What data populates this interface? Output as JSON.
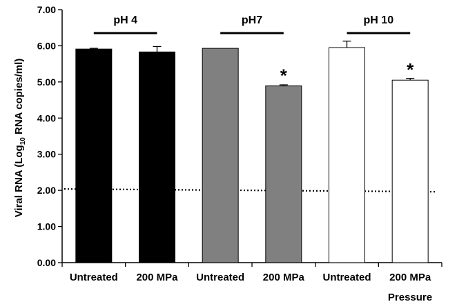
{
  "chart_data": {
    "type": "bar",
    "ylabel_main": "Viral RNA (Log",
    "ylabel_sub": "10",
    "ylabel_rest": " RNA copies/ml)",
    "xlabel": "Pressure",
    "ylim": [
      0,
      7
    ],
    "yticks": [
      "0.00",
      "1.00",
      "2.00",
      "3.00",
      "4.00",
      "5.00",
      "6.00",
      "7.00"
    ],
    "grid": false,
    "categories": [
      "Untreated",
      "200 MPa",
      "Untreated",
      "200 MPa",
      "Untreated",
      "200 MPa"
    ],
    "values": [
      5.91,
      5.83,
      5.93,
      4.89,
      5.95,
      5.05
    ],
    "errors": [
      0.02,
      0.15,
      0.0,
      0.03,
      0.18,
      0.05
    ],
    "groups": [
      {
        "label": "pH 4",
        "color": "#000000"
      },
      {
        "label": "pH7",
        "color": "#808080"
      },
      {
        "label": "pH 10",
        "color": "#ffffff"
      }
    ],
    "significance": [
      "",
      "",
      "",
      "*",
      "",
      "*"
    ],
    "reference_line": {
      "value": 2.0,
      "style": "dotted"
    }
  }
}
